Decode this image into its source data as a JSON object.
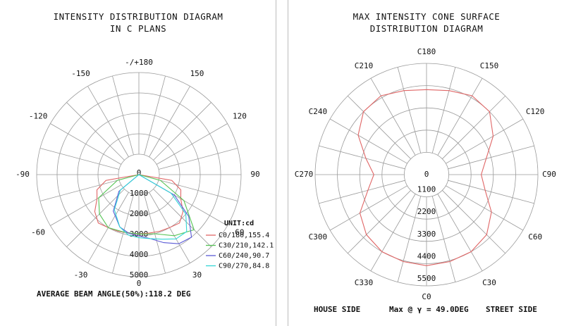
{
  "chart_data": [
    {
      "type": "polar-line",
      "title_lines": [
        "INTENSITY DISTRIBUTION DIAGRAM",
        "IN C PLANS"
      ],
      "angle_labels": {
        "top": "-/+180",
        "left": [
          "-150",
          "-120",
          "-90",
          "-60",
          "-30"
        ],
        "right": [
          "150",
          "120",
          "90",
          "60",
          "30"
        ],
        "bottom": "0"
      },
      "radial_labels": [
        "0",
        "1000",
        "2000",
        "3000",
        "4000",
        "5000",
        "0"
      ],
      "unit_label": "UNIT:cd",
      "rmax": 5500,
      "series": [
        {
          "name": "C0/180,155.4",
          "color": "#e06666",
          "angles": [
            -95,
            -80,
            -70,
            -60,
            -50,
            -40,
            -30,
            -20,
            -10,
            0,
            10,
            20,
            30,
            40,
            50,
            60,
            70,
            80,
            95
          ],
          "values": [
            0,
            1800,
            2400,
            2600,
            3100,
            3400,
            3300,
            3250,
            3200,
            3200,
            3200,
            3250,
            3300,
            3400,
            3100,
            2600,
            2400,
            1800,
            0
          ]
        },
        {
          "name": "C30/210,142.1",
          "color": "#55c455",
          "angles": [
            -90,
            -75,
            -60,
            -45,
            -30,
            -15,
            0,
            15,
            30,
            45,
            60,
            75,
            90
          ],
          "values": [
            0,
            1200,
            2500,
            3000,
            3300,
            3200,
            3200,
            3300,
            3800,
            4200,
            2800,
            1200,
            0
          ]
        },
        {
          "name": "C60/240,90.7",
          "color": "#5a5ad6",
          "angles": [
            -70,
            -50,
            -35,
            -20,
            -10,
            0,
            10,
            20,
            30,
            40,
            50,
            60,
            70
          ],
          "values": [
            0,
            1400,
            2400,
            3000,
            3200,
            3300,
            3500,
            3900,
            4300,
            4400,
            3500,
            2200,
            0
          ]
        },
        {
          "name": "C90/270,84.8",
          "color": "#33d6d6",
          "angles": [
            -70,
            -50,
            -35,
            -20,
            -10,
            0,
            10,
            20,
            30,
            40,
            50,
            60,
            70
          ],
          "values": [
            0,
            1300,
            2300,
            3000,
            3300,
            3400,
            3500,
            3700,
            4000,
            4000,
            3300,
            2000,
            0
          ]
        }
      ],
      "footer": "AVERAGE BEAM ANGLE(50%):118.2 DEG"
    },
    {
      "type": "polar-line",
      "title_lines": [
        "MAX INTENSITY CONE SURFACE",
        "DISTRIBUTION DIAGRAM"
      ],
      "angle_labels": [
        "C0",
        "C30",
        "C60",
        "C90",
        "C120",
        "C150",
        "C180",
        "C210",
        "C240",
        "C270",
        "C300",
        "C330"
      ],
      "radial_labels": [
        "0",
        "1100",
        "2200",
        "3300",
        "4400",
        "5500"
      ],
      "rmax": 5500,
      "series": [
        {
          "name": "",
          "color": "#e06666",
          "angles": [
            0,
            15,
            30,
            45,
            60,
            75,
            90,
            105,
            120,
            135,
            150,
            165,
            180,
            195,
            210,
            225,
            240,
            255,
            270,
            285,
            300,
            315,
            330,
            345,
            360
          ],
          "values": [
            4500,
            4450,
            4400,
            4200,
            3700,
            3000,
            2700,
            3050,
            3800,
            4400,
            4500,
            4300,
            4200,
            4300,
            4500,
            4400,
            3900,
            3100,
            2600,
            3000,
            3800,
            4200,
            4400,
            4450,
            4500
          ]
        }
      ],
      "footer_left": "HOUSE SIDE",
      "footer_center": "Max @ γ = 49.0DEG",
      "footer_right": "STREET SIDE"
    }
  ]
}
